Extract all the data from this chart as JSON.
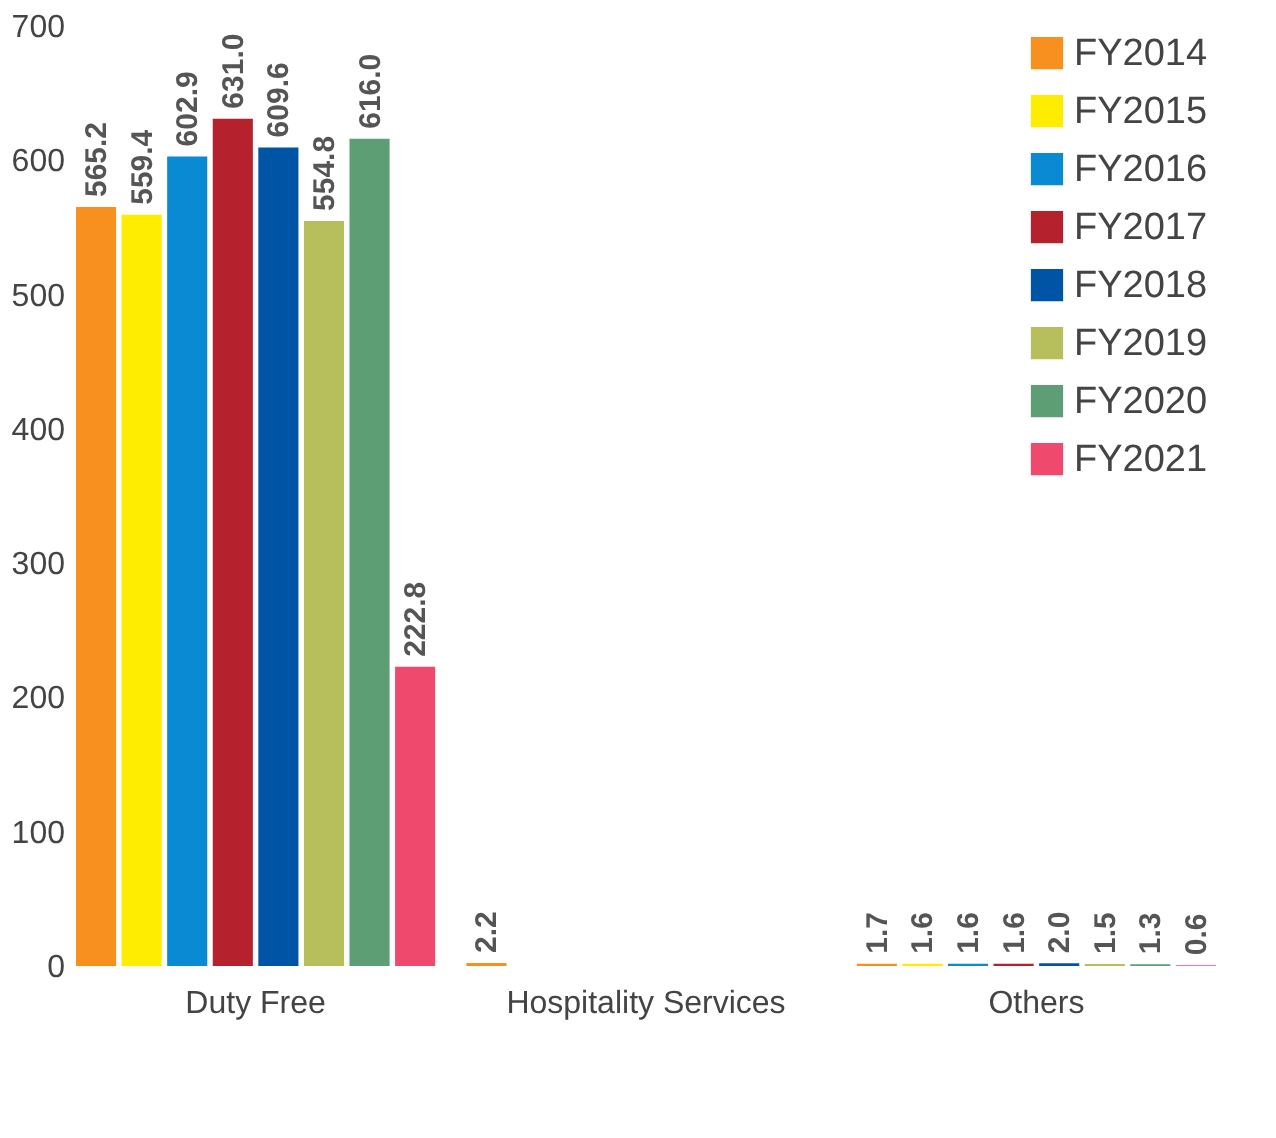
{
  "chart_data": {
    "type": "bar",
    "categories": [
      "Duty Free",
      "Hospitality Services",
      "Others"
    ],
    "series": [
      {
        "name": "FY2014",
        "color": "#f7901e",
        "values": [
          565.2,
          2.2,
          1.7
        ],
        "value_labels": [
          "565.2",
          "2.2",
          "1.7"
        ]
      },
      {
        "name": "FY2015",
        "color": "#ffed00",
        "values": [
          559.4,
          null,
          1.6
        ],
        "value_labels": [
          "559.4",
          null,
          "1.6"
        ]
      },
      {
        "name": "FY2016",
        "color": "#0a8ad2",
        "values": [
          602.9,
          null,
          1.6
        ],
        "value_labels": [
          "602.9",
          null,
          "1.6"
        ]
      },
      {
        "name": "FY2017",
        "color": "#b5212c",
        "values": [
          631.0,
          null,
          1.6
        ],
        "value_labels": [
          "631.0",
          null,
          "1.6"
        ]
      },
      {
        "name": "FY2018",
        "color": "#0054a6",
        "values": [
          609.6,
          null,
          2.0
        ],
        "value_labels": [
          "609.6",
          null,
          "2.0"
        ]
      },
      {
        "name": "FY2019",
        "color": "#b6bf5b",
        "values": [
          554.8,
          null,
          1.5
        ],
        "value_labels": [
          "554.8",
          null,
          "1.5"
        ]
      },
      {
        "name": "FY2020",
        "color": "#5e9e75",
        "values": [
          616.0,
          null,
          1.3
        ],
        "value_labels": [
          "616.0",
          null,
          "1.3"
        ]
      },
      {
        "name": "FY2021",
        "color": "#ef4a6e",
        "values": [
          222.8,
          null,
          0.6
        ],
        "value_labels": [
          "222.8",
          null,
          "0.6"
        ]
      }
    ],
    "ylim": [
      0,
      700
    ],
    "yticks": [
      0,
      100,
      200,
      300,
      400,
      500,
      600,
      700
    ],
    "grid": false,
    "legend": "top right"
  }
}
